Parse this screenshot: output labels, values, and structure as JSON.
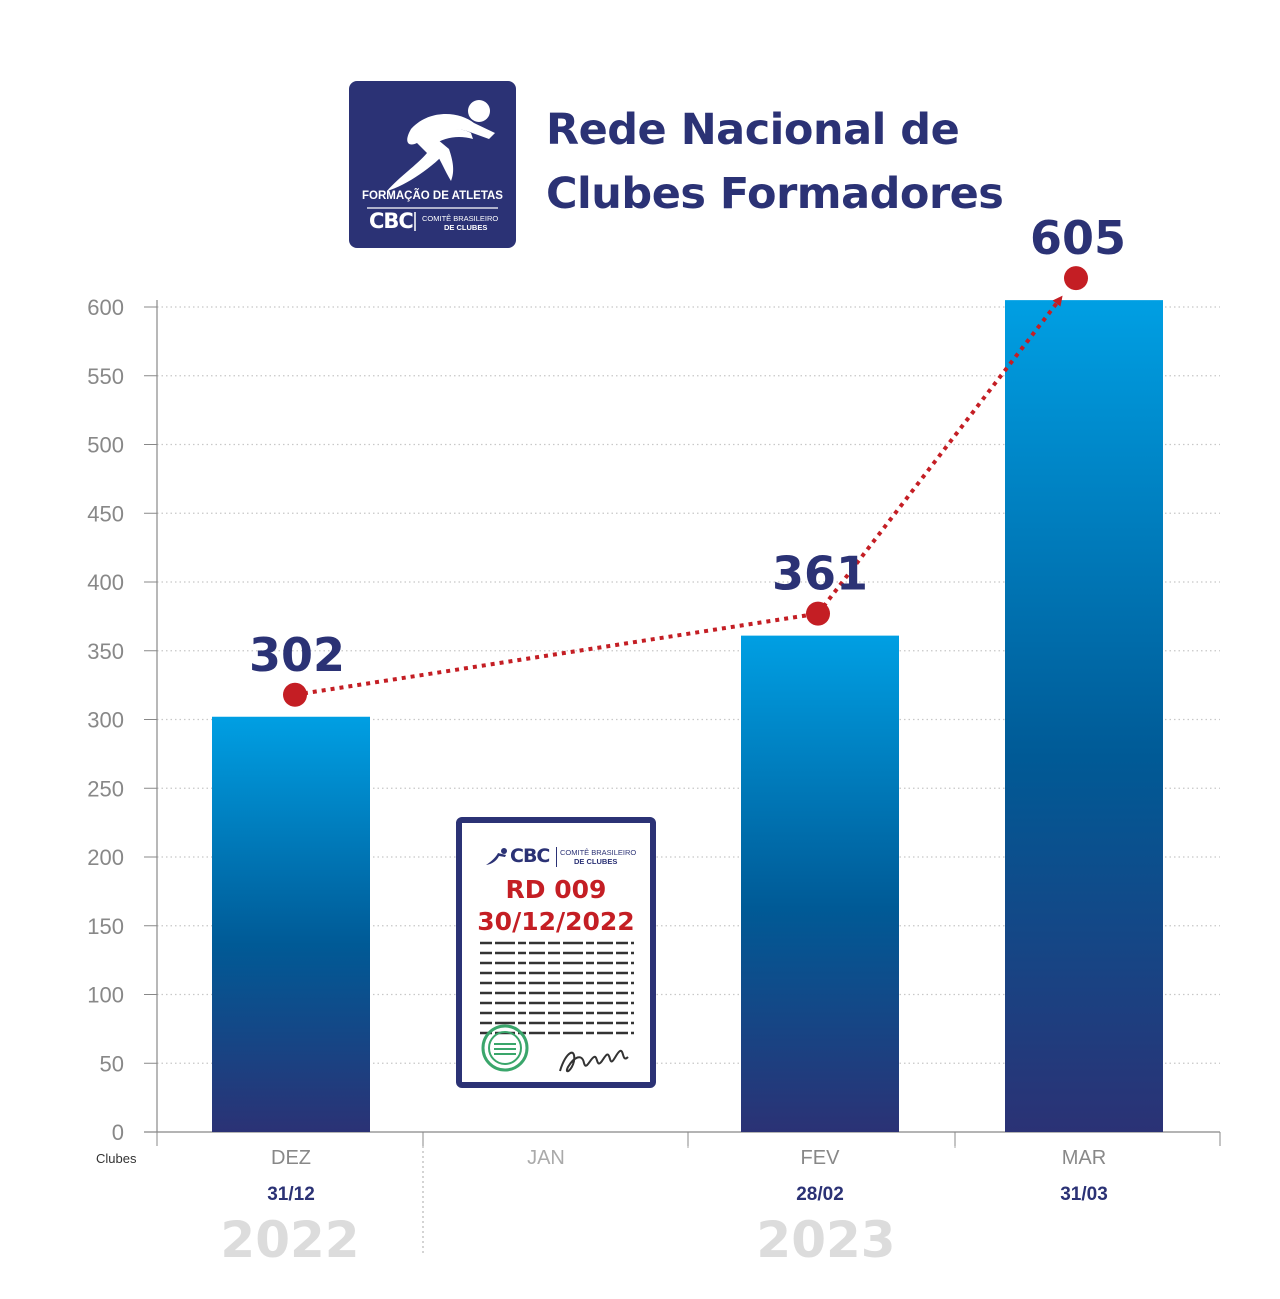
{
  "header": {
    "title_line1": "Rede Nacional de",
    "title_line2": "Clubes Formadores"
  },
  "logo": {
    "icon": "runner-icon",
    "tagline": "FORMAÇÃO DE ATLETAS",
    "brand": "CBC",
    "org_line1": "COMITÊ BRASILEIRO",
    "org_line2": "DE CLUBES"
  },
  "document": {
    "brand": "CBC",
    "org_line1": "COMITÊ BRASILEIRO",
    "org_line2": "DE CLUBES",
    "code": "RD 009",
    "date": "30/12/2022",
    "icons": [
      "runner-icon",
      "seal-icon",
      "signature-icon"
    ]
  },
  "colors": {
    "bar_top": "#009fe3",
    "bar_mid": "#005a96",
    "bar_bottom": "#2b3275",
    "label": "#2b3275",
    "trend": "#c41e24",
    "year": "#dcdcdc",
    "axis_text": "#888888"
  },
  "chart_data": {
    "type": "bar",
    "categories": [
      "DEZ",
      "JAN",
      "FEV",
      "MAR"
    ],
    "dates": [
      "31/12",
      "",
      "28/02",
      "31/03"
    ],
    "values": [
      302,
      null,
      361,
      605
    ],
    "value_labels": [
      "302",
      "",
      "361",
      "605"
    ],
    "years": [
      "2022",
      "2023"
    ],
    "ylabel": "Clubes",
    "ylim": [
      0,
      600
    ],
    "yticks": [
      0,
      50,
      100,
      150,
      200,
      250,
      300,
      350,
      400,
      450,
      500,
      550,
      600
    ],
    "grid": true,
    "trend_line": {
      "style": "dotted",
      "color": "#c41e24",
      "arrow": true
    }
  }
}
